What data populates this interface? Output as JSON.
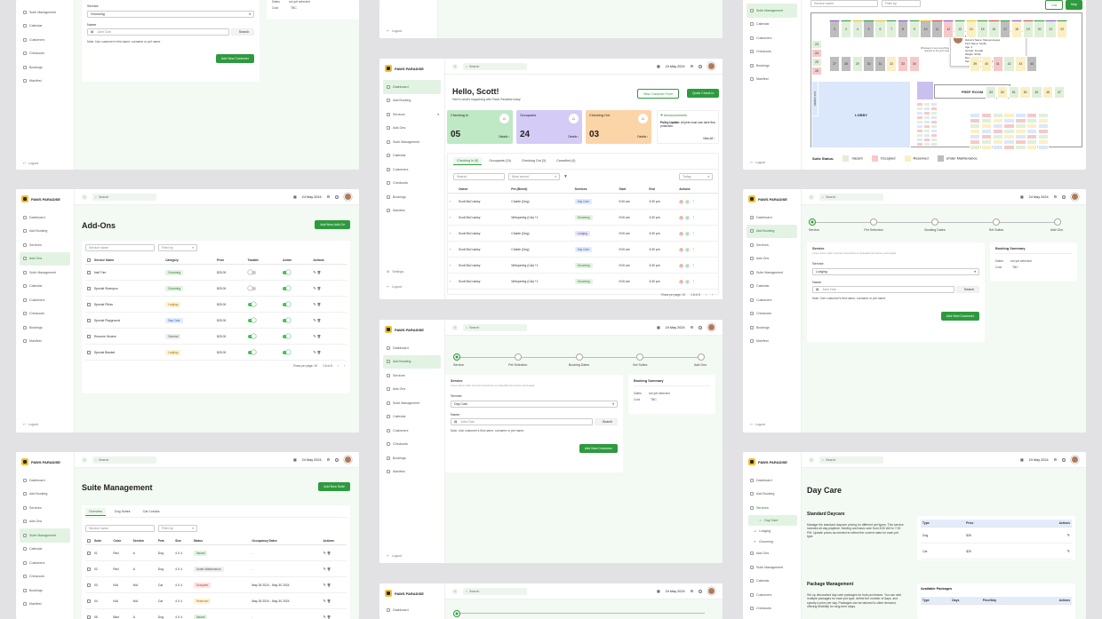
{
  "brand": {
    "name": "PAWS PARADISE"
  },
  "common": {
    "search_placeholder": "Search",
    "date": "24 May 2024",
    "logout": "Logout",
    "settings": "Settings",
    "nav": [
      "Dashboard",
      "Add Booking",
      "Services",
      "Add-Ons",
      "Suite Management",
      "Calendar",
      "Customers",
      "Checkouts",
      "Bookings",
      "Manifest"
    ],
    "nav_short": [
      "Suite Management",
      "Calendar",
      "Customers",
      "Checkouts",
      "Bookings",
      "Manifest"
    ],
    "nav_sub_daycare": [
      "Day Care",
      "Lodging",
      "Grooming"
    ]
  },
  "booking_form": {
    "steps": [
      "Service",
      "Pet Selection",
      "Booking Dates",
      "Set Suites",
      "Add Ons"
    ],
    "service_title": "Service",
    "service_desc": "Lorem ipsum dolor sit amet consectetur eu phasellus fermentum sed feugiat.",
    "service_label": "Service",
    "service_value_grooming": "Grooming",
    "service_value_lodging": "Lodging",
    "service_value_daycare": "Day Care",
    "name_label": "Name",
    "name_placeholder": "John Doe",
    "search_btn": "Search",
    "note": "Note: Use customer's first name, surname or pet name.",
    "add_customer_btn": "Add New Customer",
    "summary_title": "Booking Summary",
    "summary_dates_label": "Dates",
    "summary_dates_value": "not yet selected",
    "summary_cost_label": "Cost",
    "summary_cost_value": "TBC"
  },
  "dashboard": {
    "greeting": "Hello, Scott!",
    "subtitle": "Here's what's happening with Paws Paradise today",
    "new_customer_btn": "New Customer Form",
    "quick_checkin_btn": "Quick Check In",
    "cards": [
      {
        "title": "Checking In",
        "value": "05",
        "details": "Details",
        "color": "#bfe8c4"
      },
      {
        "title": "Occupants",
        "value": "24",
        "details": "Details",
        "color": "#d4ccf6"
      },
      {
        "title": "Checking Out",
        "value": "03",
        "details": "Details",
        "color": "#fbd4a8"
      }
    ],
    "announcements_title": "Announcements",
    "announcement_label": "Policy Update:",
    "announcement_text": "All pets must now have flea protection.",
    "view_all": "View All",
    "tabs": [
      "Checking In (5)",
      "Occupants (24)",
      "Checking Out (3)",
      "Cancelled (0)"
    ],
    "table_search": "Search",
    "sort": "Most recent",
    "period": "Today",
    "columns": [
      "Owner",
      "Pet (Breed)",
      "Services",
      "Start",
      "End",
      "Actions"
    ],
    "rows": [
      {
        "owner": "Scott McCuskey",
        "pet": "Charlie (Dog)",
        "service": "Day Care",
        "start": "9:00 am",
        "end": "3:30 pm",
        "tone": "b"
      },
      {
        "owner": "Scott McCuskey",
        "pet": "Whispering (Cat) +1",
        "service": "Grooming",
        "start": "9:00 am",
        "end": "3:30 pm",
        "tone": ""
      },
      {
        "owner": "Scott McCuskey",
        "pet": "Charlie (Dog)",
        "service": "Lodging",
        "start": "9:00 am",
        "end": "3:30 pm",
        "tone": "p"
      },
      {
        "owner": "Scott McCuskey",
        "pet": "Charlie (Dog)",
        "service": "Day Care",
        "start": "9:00 am",
        "end": "3:30 pm",
        "tone": "b"
      },
      {
        "owner": "Scott McCuskey",
        "pet": "Whispering (Cat) +1",
        "service": "Grooming",
        "start": "9:00 am",
        "end": "3:30 pm",
        "tone": ""
      },
      {
        "owner": "Scott McCuskey",
        "pet": "Whispering (Cat) +1",
        "service": "Grooming",
        "start": "9:00 am",
        "end": "3:30 pm",
        "tone": ""
      }
    ],
    "pager_label": "Rows per page: 10",
    "pager_range": "1-6 of 6"
  },
  "addons": {
    "title": "Add-Ons",
    "add_btn": "Add New Add-On",
    "search_placeholder": "Service name",
    "filter": "Filter by",
    "columns": [
      "Service Name",
      "Category",
      "Price",
      "Taxable",
      "Active",
      "Actions"
    ],
    "rows": [
      {
        "name": "Nail Trim",
        "category": "Grooming",
        "price": "$25.00",
        "tax": false,
        "active": true
      },
      {
        "name": "Special Shampoo",
        "category": "Grooming",
        "price": "$25.00",
        "tax": false,
        "active": true
      },
      {
        "name": "Special Pillow",
        "category": "Lodging",
        "price": "$25.00",
        "tax": true,
        "active": true
      },
      {
        "name": "Special Playground",
        "category": "Day Care",
        "price": "$25.00",
        "tax": true,
        "active": true
      },
      {
        "name": "Resume Service",
        "category": "General",
        "price": "$25.00",
        "tax": true,
        "active": true
      },
      {
        "name": "Special Blanket",
        "category": "Lodging",
        "price": "$25.00",
        "tax": true,
        "active": true
      }
    ],
    "pager_label": "Rows per page: 10",
    "pager_range": "1-6 of 6"
  },
  "suites": {
    "title": "Suite Management",
    "add_btn": "Add New Suite",
    "tabs": [
      "Overview",
      "Dog Suites",
      "Cat Condos"
    ],
    "search_placeholder": "Service name",
    "filter": "Filter by",
    "columns": [
      "Suite",
      "Color",
      "Section",
      "Pets",
      "Size",
      "Status",
      "Occupancy Dates",
      "Actions"
    ],
    "rows": [
      {
        "suite": "01",
        "color": "Red",
        "section": "A",
        "pets": "Dog",
        "size": "4 X 4",
        "status": "Vacant",
        "dates": "-",
        "tone": ""
      },
      {
        "suite": "02",
        "color": "Red",
        "section": "A",
        "pets": "Dog",
        "size": "4 X 4",
        "status": "Under Maintenance",
        "dates": "-",
        "tone": "g"
      },
      {
        "suite": "03",
        "color": "N/A",
        "section": "N/A",
        "pets": "Cat",
        "size": "4 X 4",
        "status": "Occupied",
        "dates": "May 26 2024 - May 30 2024",
        "tone": "r"
      },
      {
        "suite": "04",
        "color": "N/A",
        "section": "N/A",
        "pets": "Cat",
        "size": "4 X 4",
        "status": "Reserved",
        "dates": "May 26 2024 - May 30 2024",
        "tone": "y"
      },
      {
        "suite": "05",
        "color": "Blue",
        "section": "A",
        "pets": "Dog",
        "size": "4 X 4",
        "status": "Vacant",
        "dates": "-",
        "tone": ""
      }
    ]
  },
  "suite_map": {
    "search_placeholder": "Service name",
    "filter": "Filter by",
    "list_btn": "List",
    "map_btn": "Map",
    "lobby": "LOBBY",
    "prep": "PREP ROOM",
    "cat_room": "CAT ROOM",
    "popup_title": "Suite Name: RPM",
    "popup_lines": [
      "Owner's Name: Sheman Hopes",
      "Pet's Name: Snuffy",
      "Age: 4",
      "Gender: Female",
      "Weight: 30 lbs",
      "Medications: N/A",
      "Service: Day Care, Lodging"
    ],
    "popup_note": "Whatsapp to see everything relevant to the pet's stay",
    "status_title": "Suite Status:",
    "legend": [
      "Vacant",
      "Occupied",
      "Reserved",
      "Under Maintenance"
    ],
    "top_row": [
      "2",
      "3",
      "4",
      "5",
      "6",
      "7",
      "8",
      "9",
      "10",
      "11",
      "12",
      "13",
      "14",
      "15",
      "16",
      "17",
      "18",
      "19",
      "20",
      "21",
      "22"
    ],
    "mid_row": [
      "27",
      "28",
      "29",
      "30",
      "31",
      "32",
      "33",
      "34",
      "35",
      "36",
      "37",
      "38",
      "39",
      "40",
      "41",
      "42",
      "43",
      "44"
    ],
    "right_row": [
      "53",
      "52",
      "51",
      "50",
      "49",
      "48",
      "47"
    ],
    "small_cells": [
      "23",
      "24",
      "25",
      "26"
    ]
  },
  "daycare": {
    "title": "Day Care",
    "std_title": "Standard Daycare",
    "std_desc": "Manage the standard daycare pricing for different pet types. This service includes all-day playtime, feeding and basic care from 8:30 AM to 7:00 PM. Update prices as needed to reflect the current rates for each pet type.",
    "columns": [
      "Type",
      "Price",
      "Actions"
    ],
    "rows": [
      {
        "type": "Dog",
        "price": "$35"
      },
      {
        "type": "Cat",
        "price": "$25"
      }
    ],
    "pkg_title": "Package Management",
    "pkg_desc": "Set up discounted day care packages for bulk purchases. You can add multiple packages for each pet type, define the number of days, and specify a price per day. Packages can be tailored to client demand, offering flexibility for long-term stays.",
    "avail_title": "Available Packages",
    "pkg_columns": [
      "Type",
      "Days",
      "Price/Day",
      "Actions"
    ]
  }
}
